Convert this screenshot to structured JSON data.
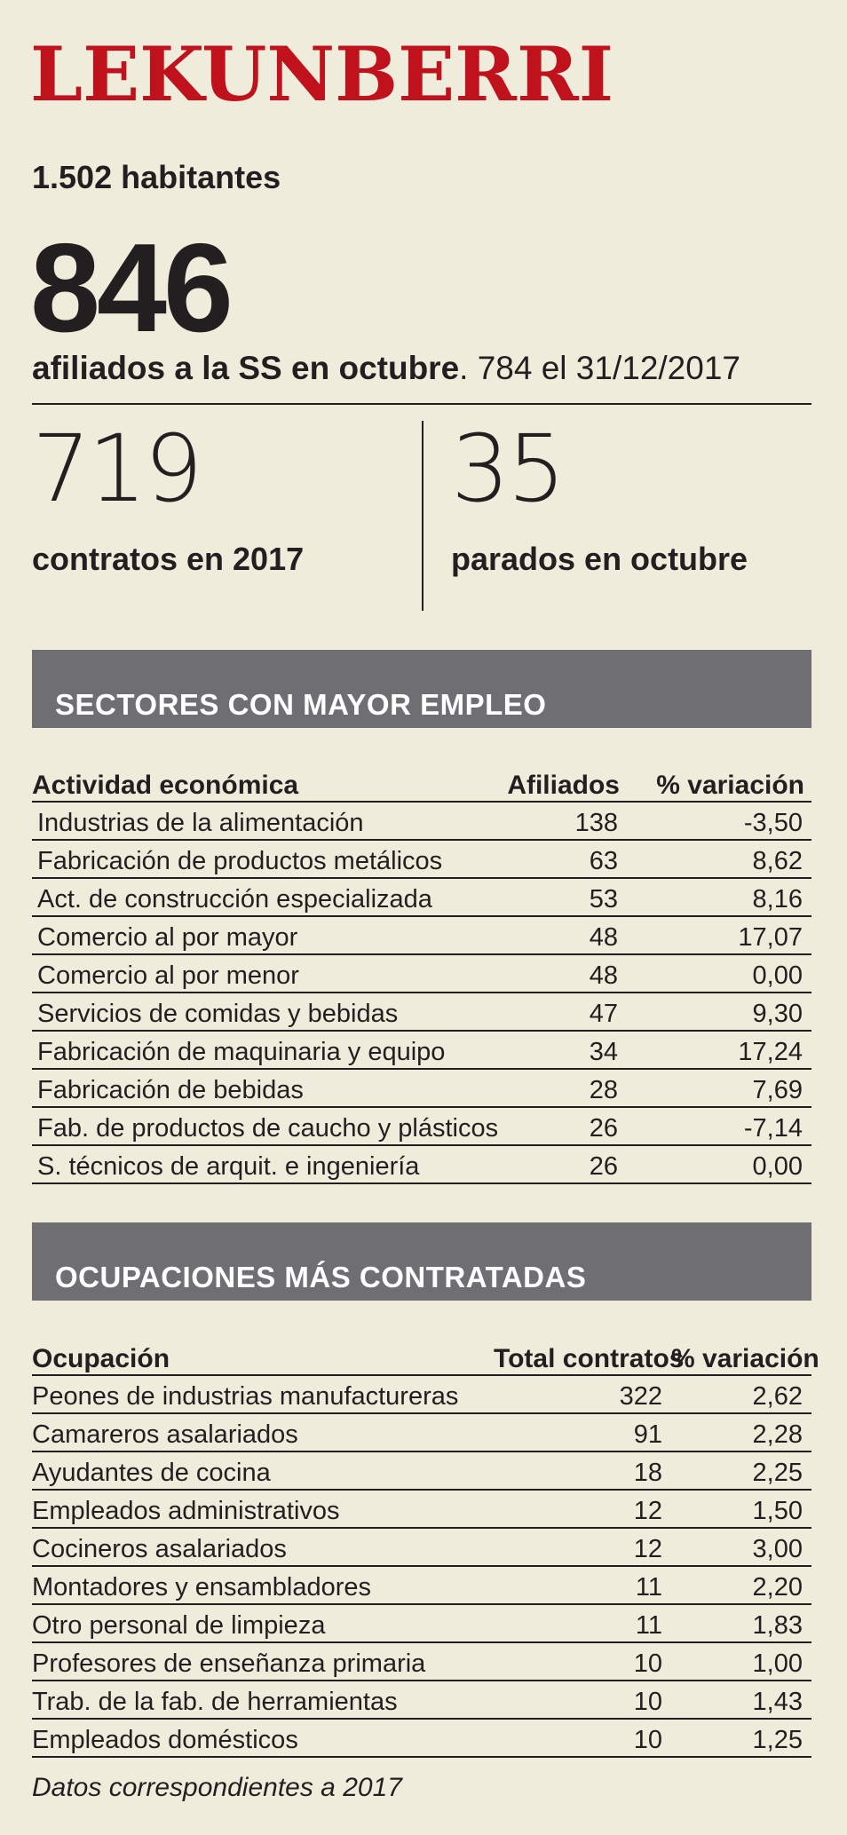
{
  "title": "LEKUNBERRI",
  "habitantes": "1.502 habitantes",
  "afiliados": {
    "number": "846",
    "label_bold": "afiliados a la SS en octubre",
    "label_rest": ". 784 el 31/12/2017"
  },
  "contratos": {
    "number": "719",
    "label": "contratos en 2017"
  },
  "parados": {
    "number": "35",
    "label": "parados en octubre"
  },
  "sectores": {
    "heading": "SECTORES CON MAYOR EMPLEO",
    "columns": [
      "Actividad económica",
      "Afiliados",
      "% variación"
    ],
    "rows": [
      [
        "Industrias de la alimentación",
        "138",
        "-3,50"
      ],
      [
        "Fabricación de productos metálicos",
        "63",
        "8,62"
      ],
      [
        "Act. de construcción especializada",
        "53",
        "8,16"
      ],
      [
        "Comercio al por mayor",
        "48",
        "17,07"
      ],
      [
        "Comercio al por menor",
        "48",
        "0,00"
      ],
      [
        "Servicios de comidas y bebidas",
        "47",
        "9,30"
      ],
      [
        "Fabricación de maquinaria y equipo",
        "34",
        "17,24"
      ],
      [
        "Fabricación de bebidas",
        "28",
        "7,69"
      ],
      [
        "Fab. de productos de caucho y plásticos",
        "26",
        "-7,14"
      ],
      [
        "S. técnicos de arquit. e ingeniería",
        "26",
        "0,00"
      ]
    ]
  },
  "ocupaciones": {
    "heading": "OCUPACIONES MÁS CONTRATADAS",
    "columns": [
      "Ocupación",
      "Total contratos",
      "% variación"
    ],
    "rows": [
      [
        "Peones de  industrias manufactureras",
        "322",
        "2,62"
      ],
      [
        "Camareros asalariados",
        "91",
        "2,28"
      ],
      [
        "Ayudantes de cocina",
        "18",
        "2,25"
      ],
      [
        "Empleados administrativos",
        "12",
        "1,50"
      ],
      [
        "Cocineros asalariados",
        "12",
        "3,00"
      ],
      [
        "Montadores y ensambladores",
        "11",
        "2,20"
      ],
      [
        "Otro personal de limpieza",
        "11",
        "1,83"
      ],
      [
        "Profesores de enseñanza primaria",
        "10",
        "1,00"
      ],
      [
        "Trab. de la fab. de herramientas",
        "10",
        "1,43"
      ],
      [
        "Empleados domésticos",
        "10",
        "1,25"
      ]
    ]
  },
  "footnote": "Datos correspondientes a 2017"
}
